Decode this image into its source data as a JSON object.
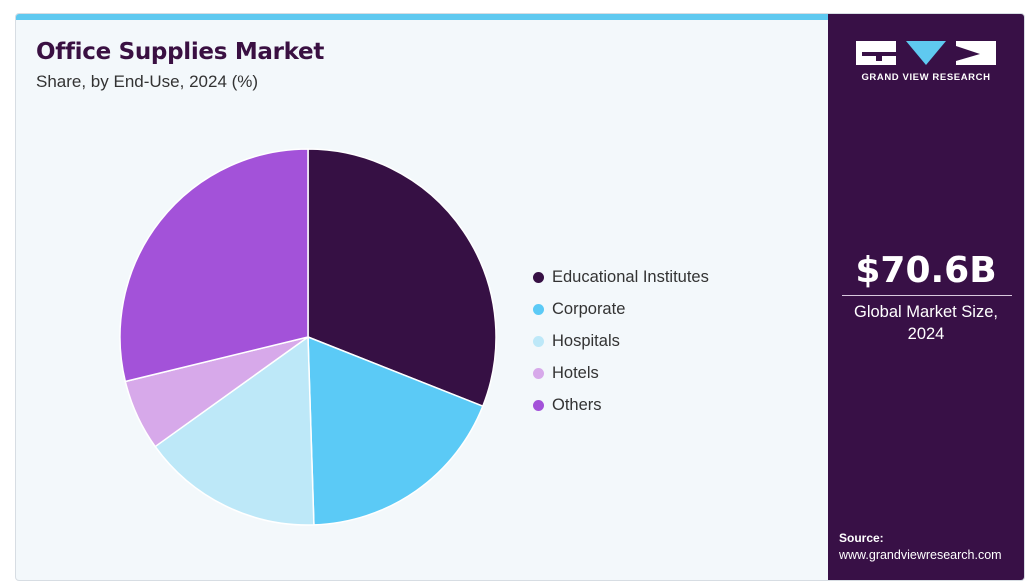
{
  "title": "Office Supplies Market",
  "subtitle": "Share, by End-Use, 2024 (%)",
  "brand": {
    "name": "GRAND VIEW RESEARCH",
    "primary_color": "#381046",
    "accent_color": "#5fc9f0"
  },
  "market_size": {
    "value": "$70.6B",
    "label_line1": "Global Market Size,",
    "label_line2": "2024"
  },
  "source": {
    "label": "Source:",
    "url": "www.grandviewresearch.com"
  },
  "chart_data": {
    "type": "pie",
    "title": "Office Supplies Market",
    "subtitle": "Share, by End-Use, 2024 (%)",
    "legend_position": "right",
    "start_angle_deg": 0,
    "direction": "clockwise",
    "slices": [
      {
        "label": "Educational Institutes",
        "value": 31.0,
        "color": "#361044"
      },
      {
        "label": "Corporate",
        "value": 18.5,
        "color": "#5bcaf6"
      },
      {
        "label": "Hospitals",
        "value": 15.6,
        "color": "#bde8f8"
      },
      {
        "label": "Hotels",
        "value": 6.1,
        "color": "#d7a9ea"
      },
      {
        "label": "Others",
        "value": 28.8,
        "color": "#a352d9"
      }
    ]
  }
}
